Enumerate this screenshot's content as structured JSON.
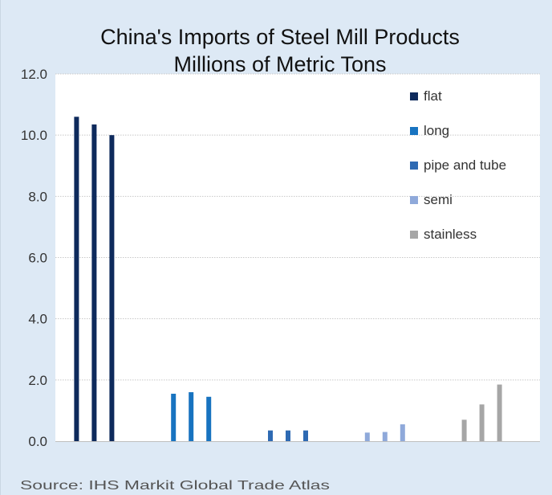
{
  "chart_data": {
    "type": "bar",
    "title": "China's Imports of Steel Mill Products",
    "subtitle": "Millions of Metric Tons",
    "categories": [
      "flat",
      "long",
      "pipe and tube",
      "semi",
      "stainless"
    ],
    "series": [
      {
        "values": [
          10.6,
          1.55,
          0.35,
          0.28,
          0.7
        ]
      },
      {
        "values": [
          10.35,
          1.6,
          0.35,
          0.3,
          1.2
        ]
      },
      {
        "values": [
          10.0,
          1.45,
          0.35,
          0.55,
          1.85
        ]
      }
    ],
    "category_colors": [
      "#0e2a5c",
      "#1873c0",
      "#2e6ab3",
      "#8fa9da",
      "#a6a6a6"
    ],
    "legend": [
      "flat",
      "long",
      "pipe and tube",
      "semi",
      "stainless"
    ],
    "legend_position": "top-right",
    "yticks": [
      "0.0",
      "2.0",
      "4.0",
      "6.0",
      "8.0",
      "10.0",
      "12.0"
    ],
    "ylim": [
      0,
      12
    ],
    "grid": true,
    "source": "Source: IHS Markit Global Trade Atlas"
  }
}
